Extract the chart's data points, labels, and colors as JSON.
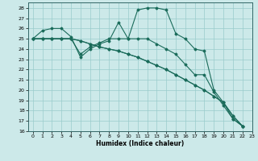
{
  "xlabel": "Humidex (Indice chaleur)",
  "bg_color": "#cce9e9",
  "grid_color": "#99cccc",
  "line_color": "#1a6b5a",
  "xlim": [
    -0.5,
    23
  ],
  "ylim": [
    16,
    28.5
  ],
  "yticks": [
    16,
    17,
    18,
    19,
    20,
    21,
    22,
    23,
    24,
    25,
    26,
    27,
    28
  ],
  "xticks": [
    0,
    1,
    2,
    3,
    4,
    5,
    6,
    7,
    8,
    9,
    10,
    11,
    12,
    13,
    14,
    15,
    16,
    17,
    18,
    19,
    20,
    21,
    22,
    23
  ],
  "series": [
    [
      25.0,
      25.8,
      26.0,
      26.0,
      25.2,
      23.2,
      24.0,
      24.5,
      24.8,
      26.6,
      25.0,
      27.8,
      28.0,
      28.0,
      27.8,
      25.5,
      25.0,
      24.0,
      23.8,
      20.0,
      18.8,
      17.2,
      16.5
    ],
    [
      25.0,
      25.0,
      25.0,
      25.0,
      25.0,
      23.5,
      24.2,
      24.6,
      25.0,
      25.0,
      25.0,
      25.0,
      25.0,
      24.5,
      24.0,
      23.5,
      22.5,
      21.5,
      21.5,
      19.8,
      18.5,
      17.2,
      16.5
    ],
    [
      25.0,
      25.0,
      25.0,
      25.0,
      25.0,
      24.8,
      24.5,
      24.2,
      24.0,
      23.8,
      23.5,
      23.2,
      22.8,
      22.4,
      22.0,
      21.5,
      21.0,
      20.5,
      20.0,
      19.4,
      18.8,
      17.5,
      16.5
    ],
    [
      25.0,
      25.0,
      25.0,
      25.0,
      25.0,
      24.8,
      24.5,
      24.2,
      24.0,
      23.8,
      23.5,
      23.2,
      22.8,
      22.4,
      22.0,
      21.5,
      21.0,
      20.5,
      20.0,
      19.4,
      18.8,
      17.5,
      16.5
    ]
  ]
}
